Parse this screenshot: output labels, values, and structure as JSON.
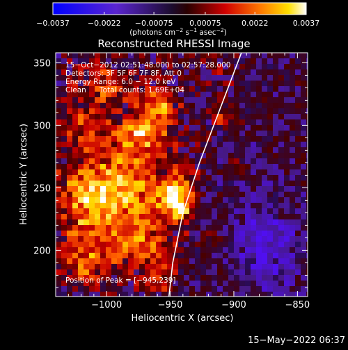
{
  "chart_data": {
    "type": "heatmap",
    "title": "Reconstructed RHESSI Image",
    "xlabel": "Heliocentric X (arcsec)",
    "ylabel": "Heliocentric Y (arcsec)",
    "xlim": [
      -1040,
      -842
    ],
    "ylim": [
      163,
      358
    ],
    "x_ticks": [
      -1000,
      -950,
      -900,
      -850
    ],
    "x_tick_labels": [
      "−1000",
      "−950",
      "−900",
      "−850"
    ],
    "y_ticks": [
      200,
      250,
      300,
      350
    ],
    "y_tick_labels": [
      "200",
      "250",
      "300",
      "350"
    ],
    "colorbar": {
      "range": [
        -0.0037,
        0.0037
      ],
      "ticks": [
        -0.0037,
        -0.0022,
        -0.00075,
        0.00075,
        0.0022,
        0.0037
      ],
      "tick_labels": [
        "−0.0037",
        "−0.0022",
        "−0.00075",
        "0.00075",
        "0.0022",
        "0.0037"
      ],
      "unit_label": "(photons cm",
      "unit_sup1": "−2",
      "unit_mid": " s",
      "unit_sup2": "−1",
      "unit_mid2": " asec",
      "unit_sup3": "−2",
      "unit_end": ")"
    },
    "annotations": {
      "time_range": "15−Oct−2012 02:51:48.000 to 02:57:28.000",
      "detectors": "Detectors: 3F 5F 6F 7F 8F, Att 0",
      "energy_range": "Energy Range: 6.0 − 12.0 keV",
      "clean_label": "Clean",
      "total_counts": "Total counts: 1.69E+04",
      "peak": "Position of Peak = [−945,239]"
    },
    "peak_position": [
      -945,
      239
    ],
    "limb_curve": [
      [
        -951,
        163
      ],
      [
        -948,
        190
      ],
      [
        -940,
        230
      ],
      [
        -927,
        270
      ],
      [
        -912,
        310
      ],
      [
        -897,
        350
      ],
      [
        -894,
        358
      ]
    ],
    "sources": [
      {
        "x": -945,
        "y": 241,
        "sx": 9,
        "sy": 11,
        "amp": 1.0
      },
      {
        "x": -985,
        "y": 248,
        "sx": 22,
        "sy": 22,
        "amp": 0.62
      },
      {
        "x": -1015,
        "y": 238,
        "sx": 16,
        "sy": 25,
        "amp": 0.52
      },
      {
        "x": -975,
        "y": 292,
        "sx": 15,
        "sy": 11,
        "amp": 0.62
      },
      {
        "x": -960,
        "y": 315,
        "sx": 10,
        "sy": 10,
        "amp": 0.58
      },
      {
        "x": -1000,
        "y": 330,
        "sx": 14,
        "sy": 11,
        "amp": 0.42
      },
      {
        "x": -1020,
        "y": 300,
        "sx": 10,
        "sy": 12,
        "amp": 0.35
      },
      {
        "x": -975,
        "y": 205,
        "sx": 13,
        "sy": 13,
        "amp": 0.52
      },
      {
        "x": -1015,
        "y": 190,
        "sx": 12,
        "sy": 12,
        "amp": 0.4
      },
      {
        "x": -960,
        "y": 180,
        "sx": 9,
        "sy": 9,
        "amp": 0.38
      },
      {
        "x": -906,
        "y": 305,
        "sx": 6,
        "sy": 6,
        "amp": 0.42
      },
      {
        "x": -898,
        "y": 268,
        "sx": 6,
        "sy": 6,
        "amp": 0.3
      },
      {
        "x": -915,
        "y": 210,
        "sx": 6,
        "sy": 6,
        "amp": 0.22
      },
      {
        "x": -865,
        "y": 235,
        "sx": 5,
        "sy": 7,
        "amp": 0.25
      }
    ],
    "negative_region": {
      "x": -875,
      "y": 205,
      "sx": 20,
      "sy": 30,
      "amp": -0.45
    }
  },
  "footer": {
    "timestamp": "15−May−2022 06:37"
  }
}
